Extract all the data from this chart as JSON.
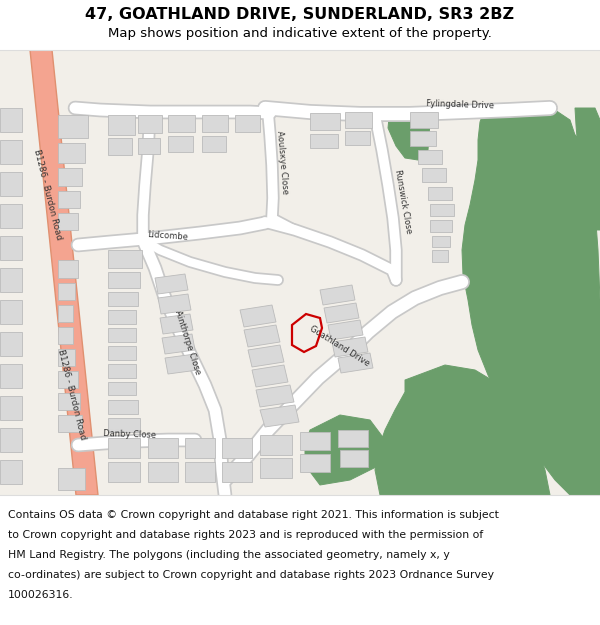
{
  "title": "47, GOATHLAND DRIVE, SUNDERLAND, SR3 2BZ",
  "subtitle": "Map shows position and indicative extent of the property.",
  "footer_line1": "Contains OS data © Crown copyright and database right 2021. This information is subject",
  "footer_line2": "to Crown copyright and database rights 2023 and is reproduced with the permission of",
  "footer_line3": "HM Land Registry. The polygons (including the associated geometry, namely x, y",
  "footer_line4": "co-ordinates) are subject to Crown copyright and database rights 2023 Ordnance Survey",
  "footer_line5": "100026316.",
  "map_bg": "#f2efe9",
  "road_color": "#ffffff",
  "road_outline": "#cccccc",
  "building_color": "#d9d9d9",
  "building_outline": "#bbbbbb",
  "green_color": "#6b9e6b",
  "red_road_color": "#f4a490",
  "property_color": "#cc0000",
  "title_fontsize": 11.5,
  "subtitle_fontsize": 9.5,
  "footer_fontsize": 7.8,
  "label_fontsize": 6.0
}
